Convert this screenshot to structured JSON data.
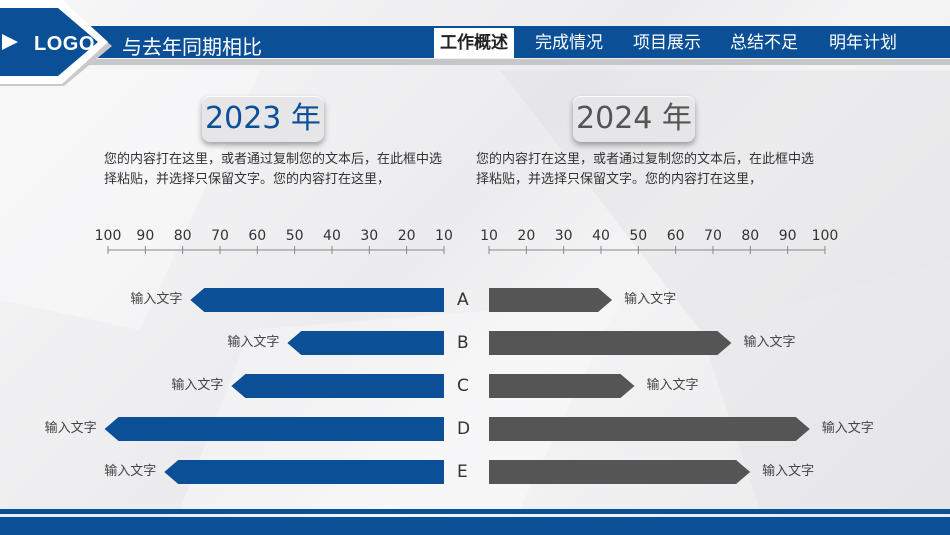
{
  "header": {
    "logo": "LOGO",
    "title": "与去年同期相比",
    "nav": [
      {
        "label": "工作概述",
        "active": true
      },
      {
        "label": "完成情况",
        "active": false
      },
      {
        "label": "项目展示",
        "active": false
      },
      {
        "label": "总结不足",
        "active": false
      },
      {
        "label": "明年计划",
        "active": false
      }
    ]
  },
  "left": {
    "year": "2023 年",
    "desc": "您的内容打在这里，或者通过复制您的文本后，在此框中选择粘贴，并选择只保留文字。您的内容打在这里，"
  },
  "right": {
    "year": "2024 年",
    "desc": "您的内容打在这里，或者通过复制您的文本后，在此框中选择粘贴，并选择只保留文字。您的内容打在这里，"
  },
  "colors": {
    "blue": "#0b4f97",
    "gray": "#555555"
  },
  "chart_data": {
    "type": "bar",
    "categories": [
      "A",
      "B",
      "C",
      "D",
      "E"
    ],
    "left_ticks": [
      "100",
      "90",
      "80",
      "70",
      "60",
      "50",
      "40",
      "30",
      "20",
      "10"
    ],
    "right_ticks": [
      "10",
      "20",
      "30",
      "40",
      "50",
      "60",
      "70",
      "80",
      "90",
      "100"
    ],
    "series": [
      {
        "label": "2023 年",
        "values": [
          68,
          42,
          57,
          91,
          75
        ],
        "bar_labels": [
          "输入文字",
          "输入文字",
          "输入文字",
          "输入文字",
          "输入文字"
        ]
      },
      {
        "label": "2024 年",
        "values": [
          33,
          65,
          39,
          86,
          70
        ],
        "bar_labels": [
          "输入文字",
          "输入文字",
          "输入文字",
          "输入文字",
          "输入文字"
        ]
      }
    ],
    "xlim": [
      0,
      100
    ]
  }
}
